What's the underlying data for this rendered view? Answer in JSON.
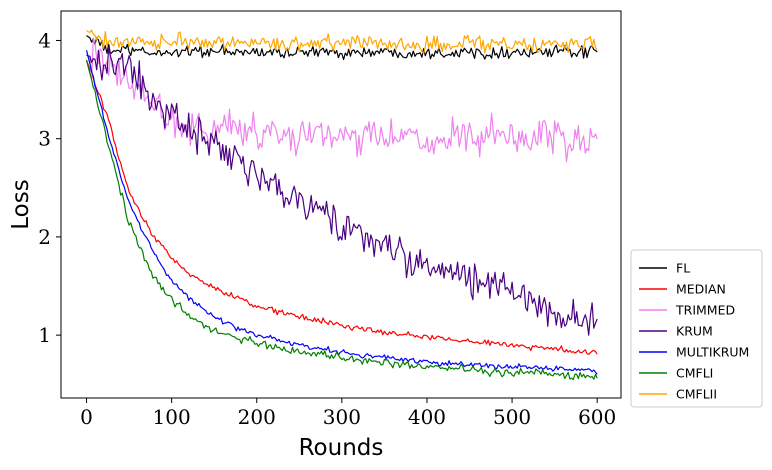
{
  "chart_data": {
    "type": "line",
    "title": "",
    "xlabel": "Rounds",
    "ylabel": "Loss",
    "xlim": [
      -30,
      628
    ],
    "ylim": [
      0.36,
      4.3
    ],
    "xticks": [
      0,
      100,
      200,
      300,
      400,
      500,
      600
    ],
    "yticks": [
      1,
      2,
      3,
      4
    ],
    "grid": false,
    "legend_position": "outside-right-bottom",
    "series_sampled_every": 25,
    "x": [
      0,
      25,
      50,
      75,
      100,
      125,
      150,
      175,
      200,
      225,
      250,
      275,
      300,
      325,
      350,
      375,
      400,
      425,
      450,
      475,
      500,
      525,
      550,
      575,
      600
    ],
    "series": [
      {
        "name": "FL",
        "color": "#000000",
        "noise": 0.03,
        "values": [
          4.05,
          3.9,
          3.9,
          3.87,
          3.88,
          3.9,
          3.88,
          3.88,
          3.88,
          3.88,
          3.88,
          3.88,
          3.88,
          3.88,
          3.88,
          3.88,
          3.88,
          3.88,
          3.88,
          3.88,
          3.88,
          3.88,
          3.88,
          3.88,
          3.88
        ]
      },
      {
        "name": "MEDIAN",
        "color": "#ff0000",
        "noise": 0.015,
        "values": [
          3.8,
          3.2,
          2.45,
          2.05,
          1.78,
          1.6,
          1.48,
          1.38,
          1.3,
          1.24,
          1.19,
          1.14,
          1.1,
          1.06,
          1.03,
          1.0,
          0.98,
          0.96,
          0.94,
          0.92,
          0.9,
          0.88,
          0.86,
          0.84,
          0.82
        ]
      },
      {
        "name": "TRIMMED",
        "color": "#ee82ee",
        "noise": 0.09,
        "values": [
          3.85,
          3.72,
          3.6,
          3.4,
          3.2,
          3.12,
          3.1,
          3.1,
          3.08,
          3.05,
          3.05,
          3.05,
          3.02,
          3.0,
          3.0,
          3.0,
          2.98,
          3.0,
          3.0,
          3.0,
          3.0,
          2.98,
          3.0,
          2.98,
          2.98
        ]
      },
      {
        "name": "KRUM",
        "color": "#4b0082",
        "noise": 0.09,
        "values": [
          3.85,
          3.78,
          3.7,
          3.4,
          3.25,
          3.1,
          2.95,
          2.75,
          2.6,
          2.45,
          2.35,
          2.25,
          2.1,
          2.0,
          1.9,
          1.8,
          1.7,
          1.65,
          1.55,
          1.5,
          1.45,
          1.35,
          1.25,
          1.15,
          1.2
        ]
      },
      {
        "name": "MULTIKRUM",
        "color": "#0000ff",
        "noise": 0.015,
        "values": [
          3.9,
          3.05,
          2.35,
          1.9,
          1.55,
          1.35,
          1.18,
          1.08,
          1.0,
          0.95,
          0.9,
          0.86,
          0.82,
          0.79,
          0.77,
          0.75,
          0.73,
          0.71,
          0.7,
          0.69,
          0.68,
          0.67,
          0.66,
          0.65,
          0.64
        ]
      },
      {
        "name": "CMFLI",
        "color": "#008000",
        "noise": 0.02,
        "values": [
          3.8,
          2.95,
          2.15,
          1.65,
          1.35,
          1.17,
          1.05,
          0.98,
          0.92,
          0.87,
          0.83,
          0.8,
          0.77,
          0.74,
          0.72,
          0.7,
          0.68,
          0.66,
          0.65,
          0.63,
          0.62,
          0.61,
          0.6,
          0.59,
          0.57
        ]
      },
      {
        "name": "CMFLII",
        "color": "#ffa500",
        "noise": 0.04,
        "values": [
          4.1,
          3.98,
          3.97,
          4.0,
          3.98,
          3.97,
          3.98,
          3.97,
          3.98,
          3.98,
          3.97,
          3.98,
          3.97,
          3.97,
          3.97,
          3.95,
          3.97,
          3.97,
          3.97,
          3.97,
          3.97,
          3.96,
          3.97,
          3.97,
          3.97
        ]
      }
    ]
  }
}
